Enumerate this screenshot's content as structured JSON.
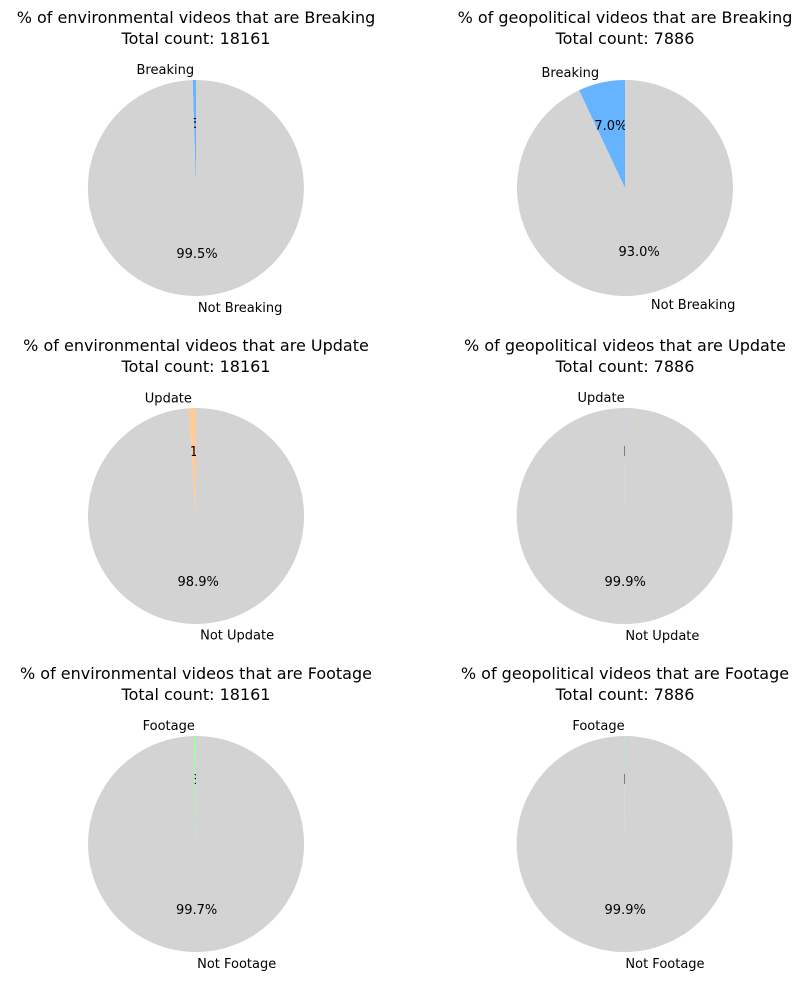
{
  "colors": {
    "rest": "#d3d3d3"
  },
  "chart_data": [
    {
      "type": "pie",
      "title": "% of environmental videos that are Breaking",
      "subtitle": "Total count: 18161",
      "labels": [
        "Breaking",
        "Not Breaking"
      ],
      "values": [
        0.5,
        99.5
      ],
      "pct_labels": [
        "0.5%",
        "99.5%"
      ],
      "colors": [
        "#66b3ff",
        "#d3d3d3"
      ]
    },
    {
      "type": "pie",
      "title": "% of geopolitical videos that are Breaking",
      "subtitle": "Total count: 7886",
      "labels": [
        "Breaking",
        "Not Breaking"
      ],
      "values": [
        7.0,
        93.0
      ],
      "pct_labels": [
        "7.0%",
        "93.0%"
      ],
      "colors": [
        "#66b3ff",
        "#d3d3d3"
      ]
    },
    {
      "type": "pie",
      "title": "% of environmental videos that are Update",
      "subtitle": "Total count: 18161",
      "labels": [
        "Update",
        "Not Update"
      ],
      "values": [
        1.1,
        98.9
      ],
      "pct_labels": [
        "1.1%",
        "98.9%"
      ],
      "colors": [
        "#ffcc99",
        "#d3d3d3"
      ]
    },
    {
      "type": "pie",
      "title": "% of geopolitical videos that are Update",
      "subtitle": "Total count: 7886",
      "labels": [
        "Update",
        "Not Update"
      ],
      "values": [
        0.1,
        99.9
      ],
      "pct_labels": [
        "0.1%",
        "99.9%"
      ],
      "colors": [
        "#c9c9f5",
        "#d3d3d3"
      ]
    },
    {
      "type": "pie",
      "title": "% of environmental videos that are Footage",
      "subtitle": "Total count: 18161",
      "labels": [
        "Footage",
        "Not Footage"
      ],
      "values": [
        0.3,
        99.7
      ],
      "pct_labels": [
        "0.3%",
        "99.7%"
      ],
      "colors": [
        "#99ff99",
        "#d3d3d3"
      ]
    },
    {
      "type": "pie",
      "title": "% of geopolitical videos that are Footage",
      "subtitle": "Total count: 7886",
      "labels": [
        "Footage",
        "Not Footage"
      ],
      "values": [
        0.1,
        99.9
      ],
      "pct_labels": [
        "0.1%",
        "99.9%"
      ],
      "colors": [
        "#a8e6cf",
        "#d3d3d3"
      ]
    }
  ]
}
